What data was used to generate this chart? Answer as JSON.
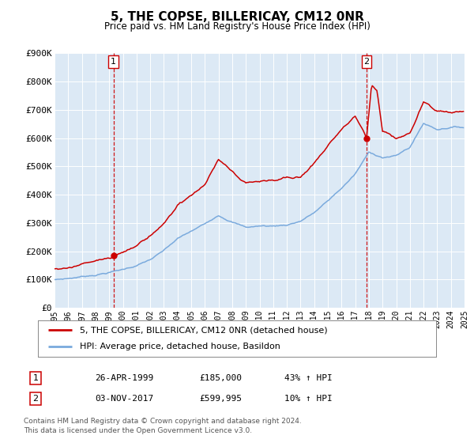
{
  "title": "5, THE COPSE, BILLERICAY, CM12 0NR",
  "subtitle": "Price paid vs. HM Land Registry's House Price Index (HPI)",
  "bg_color": "#dce9f5",
  "red_line_color": "#cc0000",
  "blue_line_color": "#7aaadd",
  "ylim": [
    0,
    900000
  ],
  "yticks": [
    0,
    100000,
    200000,
    300000,
    400000,
    500000,
    600000,
    700000,
    800000,
    900000
  ],
  "ytick_labels": [
    "£0",
    "£100K",
    "£200K",
    "£300K",
    "£400K",
    "£500K",
    "£600K",
    "£700K",
    "£800K",
    "£900K"
  ],
  "xmin": 1995,
  "xmax": 2025,
  "sale1_price": 185000,
  "sale1_label": "1",
  "sale1_x": 1999.32,
  "sale2_price": 599995,
  "sale2_label": "2",
  "sale2_x": 2017.84,
  "legend_line1": "5, THE COPSE, BILLERICAY, CM12 0NR (detached house)",
  "legend_line2": "HPI: Average price, detached house, Basildon",
  "table_row1_num": "1",
  "table_row1_date": "26-APR-1999",
  "table_row1_price": "£185,000",
  "table_row1_hpi": "43% ↑ HPI",
  "table_row2_num": "2",
  "table_row2_date": "03-NOV-2017",
  "table_row2_price": "£599,995",
  "table_row2_hpi": "10% ↑ HPI",
  "footer": "Contains HM Land Registry data © Crown copyright and database right 2024.\nThis data is licensed under the Open Government Licence v3.0.",
  "blue_knots_t": [
    1995,
    1996,
    1997,
    1998,
    1999,
    2000,
    2001,
    2002,
    2003,
    2004,
    2005,
    2006,
    2007,
    2008,
    2009,
    2010,
    2011,
    2012,
    2013,
    2014,
    2015,
    2016,
    2017,
    2018,
    2019,
    2020,
    2021,
    2022,
    2023,
    2024,
    2025
  ],
  "blue_knots_v": [
    100000,
    105000,
    112000,
    120000,
    130000,
    140000,
    155000,
    175000,
    205000,
    245000,
    270000,
    295000,
    330000,
    310000,
    290000,
    295000,
    295000,
    300000,
    315000,
    345000,
    385000,
    430000,
    480000,
    555000,
    540000,
    545000,
    575000,
    660000,
    640000,
    650000,
    650000
  ],
  "red_knots_t": [
    1995,
    1996,
    1997,
    1998,
    1999.32,
    2000,
    2001,
    2002,
    2003,
    2004,
    2005,
    2006,
    2007,
    2008,
    2009,
    2010,
    2011,
    2012,
    2013,
    2014,
    2015,
    2016,
    2017,
    2017.84,
    2018.2,
    2018.6,
    2019,
    2020,
    2021,
    2022,
    2023,
    2024,
    2025
  ],
  "red_knots_v": [
    138000,
    148000,
    158000,
    170000,
    185000,
    200000,
    220000,
    255000,
    300000,
    360000,
    395000,
    430000,
    520000,
    480000,
    435000,
    440000,
    450000,
    460000,
    465000,
    520000,
    580000,
    640000,
    680000,
    599995,
    790000,
    770000,
    625000,
    600000,
    620000,
    735000,
    705000,
    700000,
    705000
  ]
}
